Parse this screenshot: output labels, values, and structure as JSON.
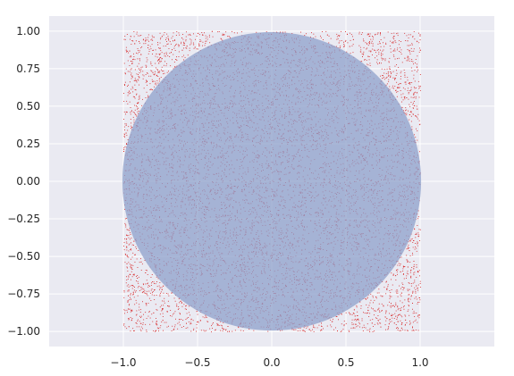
{
  "chart_data": {
    "type": "scatter",
    "title": "",
    "xlabel": "",
    "ylabel": "",
    "xlim": [
      -1.5,
      1.5
    ],
    "ylim": [
      -1.1,
      1.1
    ],
    "grid": true,
    "style": "seaborn-darkgrid",
    "x_ticks": [
      -1.0,
      -0.5,
      0.0,
      0.5,
      1.0
    ],
    "x_tick_labels": [
      "−1.0",
      "−0.5",
      "0.0",
      "0.5",
      "1.0"
    ],
    "y_ticks": [
      1.0,
      0.75,
      0.5,
      0.25,
      0.0,
      -0.25,
      -0.5,
      -0.75,
      -1.0
    ],
    "y_tick_labels": [
      "1.00",
      "0.75",
      "0.50",
      "0.25",
      "0.00",
      "−0.25",
      "−0.50",
      "−0.75",
      "−1.00"
    ],
    "series": [
      {
        "kind": "uniform-random-points",
        "x_range": [
          -1.0,
          1.0
        ],
        "y_range": [
          -1.0,
          1.0
        ],
        "color": "#d62728"
      },
      {
        "kind": "filled-circle",
        "center": [
          0.0,
          0.0
        ],
        "radius": 1.0,
        "color": "#8da0cb",
        "opacity": 0.75
      }
    ],
    "colors": {
      "plot_background": "#eaeaf2",
      "grid": "#ffffff",
      "points": "#d62728",
      "circle": "#8da0cb"
    }
  }
}
